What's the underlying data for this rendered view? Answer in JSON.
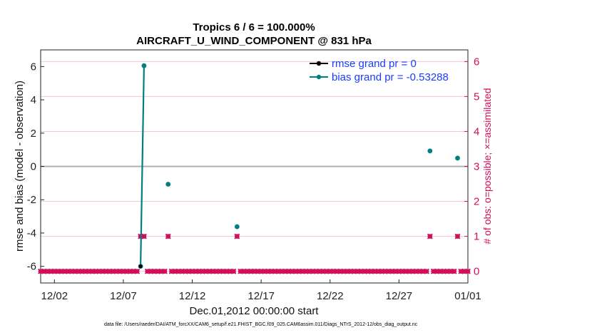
{
  "chart_data": {
    "type": "line",
    "title_line1": "Tropics 6 / 6 = 100.000%",
    "title_line2": "AIRCRAFT_U_WIND_COMPONENT @ 831 hPa",
    "xlabel": "Dec.01,2012 00:00:00 start",
    "ylabel": "rmse and bias (model - observation)",
    "y2label": "# of obs: o=possible; ×=assimilated",
    "xlim": [
      0.5,
      31.5
    ],
    "ylim": [
      -7,
      7
    ],
    "y2lim": [
      -0.333,
      6.333
    ],
    "x_ticks": [
      1.5,
      6.5,
      11.5,
      16.5,
      21.5,
      26.5,
      31.5
    ],
    "x_tick_labels": [
      "12/02",
      "12/07",
      "12/12",
      "12/17",
      "12/22",
      "12/27",
      "01/01"
    ],
    "y_ticks": [
      -6,
      -4,
      -2,
      0,
      2,
      4,
      6
    ],
    "y_tick_labels": [
      "-6",
      "-4",
      "-2",
      "0",
      "2",
      "4",
      "6"
    ],
    "y2_ticks": [
      0,
      1,
      2,
      3,
      4,
      5,
      6
    ],
    "y2_tick_labels": [
      "0",
      "1",
      "2",
      "3",
      "4",
      "5",
      "6"
    ],
    "colors": {
      "rmse": "#000000",
      "bias": "#008080",
      "obs": "#d0105a",
      "zero": "#b0b0b0",
      "grid": "#f0c8d6",
      "legend_text": "#1a3cff"
    },
    "series": [
      {
        "name": "rmse grand pr = 0",
        "x": [
          7.75
        ],
        "y": [
          -6
        ]
      },
      {
        "name": "bias grand pr = -0.53288",
        "x": [
          7.75,
          8.0,
          9.75,
          14.75,
          28.75,
          30.75
        ],
        "y": [
          -6,
          6.05,
          -1.07,
          -3.62,
          0.93,
          0.5
        ]
      }
    ],
    "obs_counts": {
      "x": [
        0.5,
        0.75,
        1.0,
        1.25,
        1.5,
        1.75,
        2.0,
        2.25,
        2.5,
        2.75,
        3.0,
        3.25,
        3.5,
        3.75,
        4.0,
        4.25,
        4.5,
        4.75,
        5.0,
        5.25,
        5.5,
        5.75,
        6.0,
        6.25,
        6.5,
        6.75,
        7.0,
        7.25,
        7.5,
        7.75,
        8.0,
        8.25,
        8.5,
        8.75,
        9.0,
        9.25,
        9.5,
        9.75,
        10.0,
        10.25,
        10.5,
        10.75,
        11.0,
        11.25,
        11.5,
        11.75,
        12.0,
        12.25,
        12.5,
        12.75,
        13.0,
        13.25,
        13.5,
        13.75,
        14.0,
        14.25,
        14.5,
        14.75,
        15.0,
        15.25,
        15.5,
        15.75,
        16.0,
        16.25,
        16.5,
        16.75,
        17.0,
        17.25,
        17.5,
        17.75,
        18.0,
        18.25,
        18.5,
        18.75,
        19.0,
        19.25,
        19.5,
        19.75,
        20.0,
        20.25,
        20.5,
        20.75,
        21.0,
        21.25,
        21.5,
        21.75,
        22.0,
        22.25,
        22.5,
        22.75,
        23.0,
        23.25,
        23.5,
        23.75,
        24.0,
        24.25,
        24.5,
        24.75,
        25.0,
        25.25,
        25.5,
        25.75,
        26.0,
        26.25,
        26.5,
        26.75,
        27.0,
        27.25,
        27.5,
        27.75,
        28.0,
        28.25,
        28.5,
        28.75,
        29.0,
        29.25,
        29.5,
        29.75,
        30.0,
        30.25,
        30.5,
        30.75,
        31.0,
        31.25,
        31.5
      ],
      "possible": [
        0,
        0,
        0,
        0,
        0,
        0,
        0,
        0,
        0,
        0,
        0,
        0,
        0,
        0,
        0,
        0,
        0,
        0,
        0,
        0,
        0,
        0,
        0,
        0,
        0,
        0,
        0,
        0,
        0,
        1,
        1,
        0,
        0,
        0,
        0,
        0,
        0,
        1,
        0,
        0,
        0,
        0,
        0,
        0,
        0,
        0,
        0,
        0,
        0,
        0,
        0,
        0,
        0,
        0,
        0,
        0,
        0,
        1,
        0,
        0,
        0,
        0,
        0,
        0,
        0,
        0,
        0,
        0,
        0,
        0,
        0,
        0,
        0,
        0,
        0,
        0,
        0,
        0,
        0,
        0,
        0,
        0,
        0,
        0,
        0,
        0,
        0,
        0,
        0,
        0,
        0,
        0,
        0,
        0,
        0,
        0,
        0,
        0,
        0,
        0,
        0,
        0,
        0,
        0,
        0,
        0,
        0,
        0,
        0,
        0,
        0,
        0,
        0,
        1,
        0,
        0,
        0,
        0,
        0,
        0,
        0,
        1,
        0,
        0,
        0
      ]
    }
  },
  "legend": {
    "rmse_label": "rmse grand pr = 0",
    "bias_label": "bias grand pr = -0.53288"
  },
  "footer": {
    "data_file": "data file: /Users/raeder/DAI/ATM_forcXX/CAM6_setup/f.e21.FHIST_BGC.f09_025.CAM6assim.011/Diags_NTrS_2012-12/obs_diag_output.nc"
  }
}
